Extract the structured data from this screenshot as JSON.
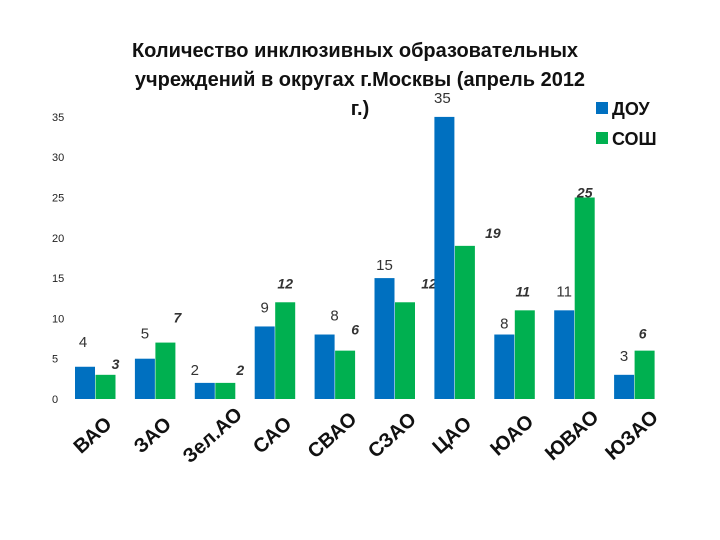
{
  "chart_data": {
    "type": "bar",
    "title_lines": [
      "Количество инклюзивных образовательных",
      "учреждений в округах г.Москвы (апрель 2012",
      "г.)"
    ],
    "categories": [
      "ВАО",
      "ЗАО",
      "Зел.АО",
      "САО",
      "СВАО",
      "СЗАО",
      "ЦАО",
      "ЮАО",
      "ЮВАО",
      "ЮЗАО"
    ],
    "series": [
      {
        "name": "ДОУ",
        "values": [
          4,
          5,
          2,
          9,
          8,
          15,
          35,
          8,
          11,
          3
        ],
        "color": "#0070C0"
      },
      {
        "name": "СОШ",
        "values": [
          3,
          7,
          2,
          12,
          6,
          12,
          19,
          11,
          25,
          6
        ],
        "color": "#00B050"
      }
    ],
    "ylim": [
      0,
      35
    ],
    "yticks": [
      "0",
      "5",
      "10",
      "15",
      "20",
      "25",
      "30",
      "35"
    ],
    "grid": false,
    "legend_position": "top-right"
  }
}
